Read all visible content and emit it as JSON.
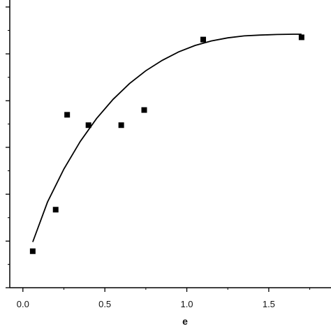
{
  "chart_data": {
    "type": "scatter",
    "xlabel": "e",
    "ylabel": "",
    "title": "",
    "xlim": [
      -0.08,
      1.82
    ],
    "ylim": [
      0,
      1
    ],
    "x_ticks": [
      0.0,
      0.5,
      1.0,
      1.5
    ],
    "x_tick_labels": [
      "0.0",
      "0.5",
      "1.0",
      "1.5"
    ],
    "y_ticks": [
      0.0,
      0.166,
      0.333,
      0.5,
      0.666,
      0.833,
      1.0
    ],
    "grid": false,
    "legend": "none",
    "series": [
      {
        "kind": "points",
        "x": [
          0.06,
          0.2,
          0.27,
          0.4,
          0.6,
          0.74,
          1.1,
          1.7
        ],
        "y": [
          0.13,
          0.278,
          0.616,
          0.579,
          0.579,
          0.633,
          0.884,
          0.892
        ],
        "marker": "square",
        "color": "#000000"
      },
      {
        "kind": "fit-curve",
        "x": [
          0.06,
          0.15,
          0.25,
          0.35,
          0.45,
          0.55,
          0.65,
          0.75,
          0.85,
          0.95,
          1.05,
          1.15,
          1.25,
          1.35,
          1.45,
          1.55,
          1.65,
          1.7
        ],
        "y": [
          0.163,
          0.305,
          0.423,
          0.521,
          0.603,
          0.671,
          0.727,
          0.773,
          0.81,
          0.84,
          0.863,
          0.879,
          0.89,
          0.897,
          0.9,
          0.902,
          0.903,
          0.903
        ],
        "color": "#000000"
      }
    ]
  }
}
